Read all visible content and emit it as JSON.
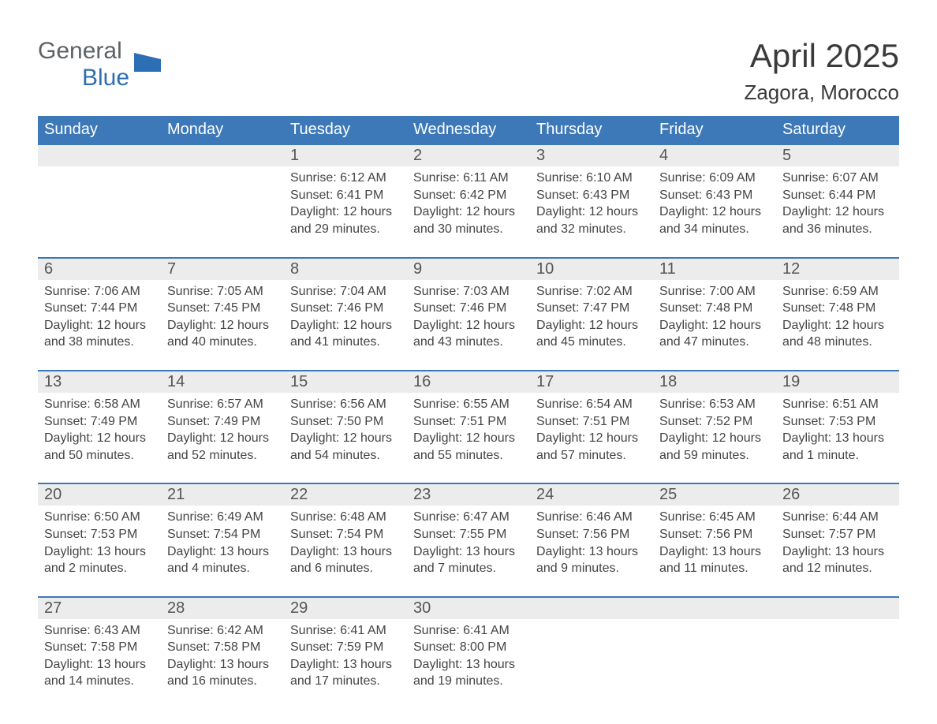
{
  "logo": {
    "word1": "General",
    "word2": "Blue",
    "flag_color": "#2d6fb4"
  },
  "title": "April 2025",
  "location": "Zagora, Morocco",
  "colors": {
    "header_bg": "#3d79b8",
    "header_text": "#ffffff",
    "daynum_bg": "#ececec",
    "week_border": "#3d79b8",
    "body_text": "#444444",
    "page_bg": "#ffffff"
  },
  "daysOfWeek": [
    "Sunday",
    "Monday",
    "Tuesday",
    "Wednesday",
    "Thursday",
    "Friday",
    "Saturday"
  ],
  "weeks": [
    [
      {
        "num": "",
        "sunrise": "",
        "sunset": "",
        "daylight": ""
      },
      {
        "num": "",
        "sunrise": "",
        "sunset": "",
        "daylight": ""
      },
      {
        "num": "1",
        "sunrise": "6:12 AM",
        "sunset": "6:41 PM",
        "daylight": "12 hours and 29 minutes."
      },
      {
        "num": "2",
        "sunrise": "6:11 AM",
        "sunset": "6:42 PM",
        "daylight": "12 hours and 30 minutes."
      },
      {
        "num": "3",
        "sunrise": "6:10 AM",
        "sunset": "6:43 PM",
        "daylight": "12 hours and 32 minutes."
      },
      {
        "num": "4",
        "sunrise": "6:09 AM",
        "sunset": "6:43 PM",
        "daylight": "12 hours and 34 minutes."
      },
      {
        "num": "5",
        "sunrise": "6:07 AM",
        "sunset": "6:44 PM",
        "daylight": "12 hours and 36 minutes."
      }
    ],
    [
      {
        "num": "6",
        "sunrise": "7:06 AM",
        "sunset": "7:44 PM",
        "daylight": "12 hours and 38 minutes."
      },
      {
        "num": "7",
        "sunrise": "7:05 AM",
        "sunset": "7:45 PM",
        "daylight": "12 hours and 40 minutes."
      },
      {
        "num": "8",
        "sunrise": "7:04 AM",
        "sunset": "7:46 PM",
        "daylight": "12 hours and 41 minutes."
      },
      {
        "num": "9",
        "sunrise": "7:03 AM",
        "sunset": "7:46 PM",
        "daylight": "12 hours and 43 minutes."
      },
      {
        "num": "10",
        "sunrise": "7:02 AM",
        "sunset": "7:47 PM",
        "daylight": "12 hours and 45 minutes."
      },
      {
        "num": "11",
        "sunrise": "7:00 AM",
        "sunset": "7:48 PM",
        "daylight": "12 hours and 47 minutes."
      },
      {
        "num": "12",
        "sunrise": "6:59 AM",
        "sunset": "7:48 PM",
        "daylight": "12 hours and 48 minutes."
      }
    ],
    [
      {
        "num": "13",
        "sunrise": "6:58 AM",
        "sunset": "7:49 PM",
        "daylight": "12 hours and 50 minutes."
      },
      {
        "num": "14",
        "sunrise": "6:57 AM",
        "sunset": "7:49 PM",
        "daylight": "12 hours and 52 minutes."
      },
      {
        "num": "15",
        "sunrise": "6:56 AM",
        "sunset": "7:50 PM",
        "daylight": "12 hours and 54 minutes."
      },
      {
        "num": "16",
        "sunrise": "6:55 AM",
        "sunset": "7:51 PM",
        "daylight": "12 hours and 55 minutes."
      },
      {
        "num": "17",
        "sunrise": "6:54 AM",
        "sunset": "7:51 PM",
        "daylight": "12 hours and 57 minutes."
      },
      {
        "num": "18",
        "sunrise": "6:53 AM",
        "sunset": "7:52 PM",
        "daylight": "12 hours and 59 minutes."
      },
      {
        "num": "19",
        "sunrise": "6:51 AM",
        "sunset": "7:53 PM",
        "daylight": "13 hours and 1 minute."
      }
    ],
    [
      {
        "num": "20",
        "sunrise": "6:50 AM",
        "sunset": "7:53 PM",
        "daylight": "13 hours and 2 minutes."
      },
      {
        "num": "21",
        "sunrise": "6:49 AM",
        "sunset": "7:54 PM",
        "daylight": "13 hours and 4 minutes."
      },
      {
        "num": "22",
        "sunrise": "6:48 AM",
        "sunset": "7:54 PM",
        "daylight": "13 hours and 6 minutes."
      },
      {
        "num": "23",
        "sunrise": "6:47 AM",
        "sunset": "7:55 PM",
        "daylight": "13 hours and 7 minutes."
      },
      {
        "num": "24",
        "sunrise": "6:46 AM",
        "sunset": "7:56 PM",
        "daylight": "13 hours and 9 minutes."
      },
      {
        "num": "25",
        "sunrise": "6:45 AM",
        "sunset": "7:56 PM",
        "daylight": "13 hours and 11 minutes."
      },
      {
        "num": "26",
        "sunrise": "6:44 AM",
        "sunset": "7:57 PM",
        "daylight": "13 hours and 12 minutes."
      }
    ],
    [
      {
        "num": "27",
        "sunrise": "6:43 AM",
        "sunset": "7:58 PM",
        "daylight": "13 hours and 14 minutes."
      },
      {
        "num": "28",
        "sunrise": "6:42 AM",
        "sunset": "7:58 PM",
        "daylight": "13 hours and 16 minutes."
      },
      {
        "num": "29",
        "sunrise": "6:41 AM",
        "sunset": "7:59 PM",
        "daylight": "13 hours and 17 minutes."
      },
      {
        "num": "30",
        "sunrise": "6:41 AM",
        "sunset": "8:00 PM",
        "daylight": "13 hours and 19 minutes."
      },
      {
        "num": "",
        "sunrise": "",
        "sunset": "",
        "daylight": ""
      },
      {
        "num": "",
        "sunrise": "",
        "sunset": "",
        "daylight": ""
      },
      {
        "num": "",
        "sunrise": "",
        "sunset": "",
        "daylight": ""
      }
    ]
  ]
}
